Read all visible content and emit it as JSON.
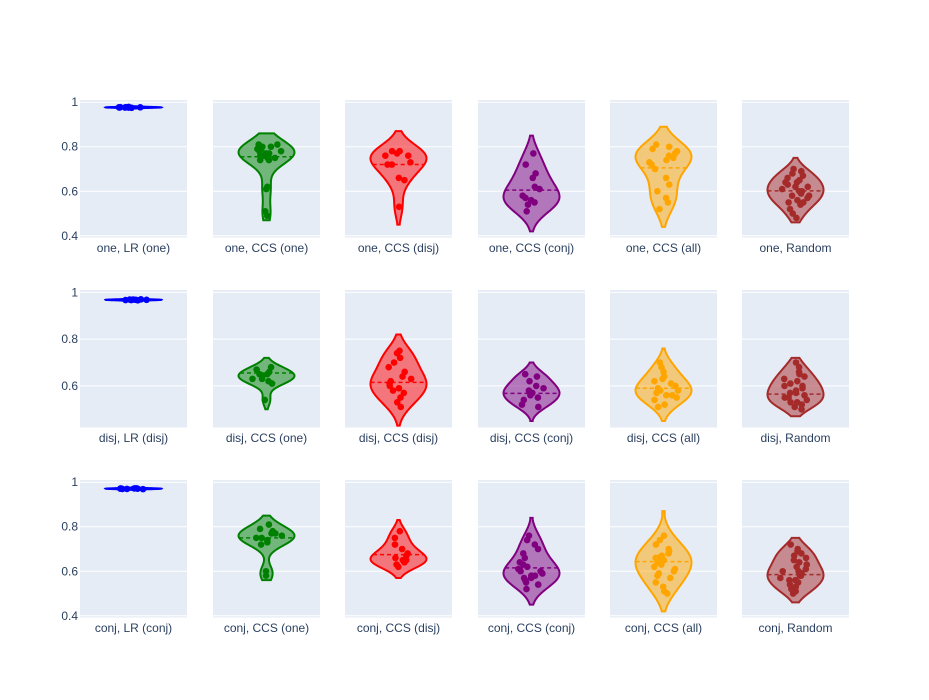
{
  "chart_data": {
    "type": "violin",
    "layout": "3x6 grid of violin subplots with overlaid jittered points and dashed mean line",
    "colors": {
      "plot_background": "#e5ecf6",
      "grid": "#ffffff",
      "text": "#2a3f5f",
      "LR": "#0000ff",
      "CCS (one)": "#008000",
      "CCS (disj)": "#ff0000",
      "CCS (conj)": "#800080",
      "CCS (all)": "#ffa500",
      "Random": "#a52a2a"
    },
    "rows": [
      {
        "yaxis": {
          "ticks": [
            0.4,
            0.6,
            0.8,
            1
          ],
          "range": [
            0.39,
            1.01
          ]
        },
        "panels": [
          {
            "label": "one, LR (one)",
            "series": "LR",
            "min": 0.972,
            "max": 0.982,
            "mean": 0.977,
            "values": [
              0.975,
              0.976,
              0.977,
              0.978,
              0.979,
              0.976,
              0.977,
              0.978,
              0.977,
              0.976
            ]
          },
          {
            "label": "one, CCS (one)",
            "series": "CCS (one)",
            "min": 0.47,
            "max": 0.86,
            "mean": 0.755,
            "values": [
              0.49,
              0.51,
              0.61,
              0.62,
              0.74,
              0.75,
              0.76,
              0.77,
              0.78,
              0.79,
              0.8,
              0.81,
              0.75,
              0.78,
              0.77,
              0.76,
              0.8,
              0.74,
              0.79,
              0.81
            ]
          },
          {
            "label": "one, CCS (disj)",
            "series": "CCS (disj)",
            "min": 0.45,
            "max": 0.87,
            "mean": 0.72,
            "values": [
              0.53,
              0.65,
              0.66,
              0.72,
              0.73,
              0.76,
              0.77,
              0.78,
              0.78,
              0.76,
              0.72
            ]
          },
          {
            "label": "one, CCS (conj)",
            "series": "CCS (conj)",
            "min": 0.42,
            "max": 0.85,
            "mean": 0.605,
            "values": [
              0.51,
              0.54,
              0.56,
              0.58,
              0.61,
              0.62,
              0.66,
              0.68,
              0.72,
              0.77,
              0.55,
              0.57
            ]
          },
          {
            "label": "one, CCS (all)",
            "series": "CCS (all)",
            "min": 0.44,
            "max": 0.89,
            "mean": 0.705,
            "values": [
              0.52,
              0.55,
              0.57,
              0.6,
              0.63,
              0.66,
              0.7,
              0.72,
              0.74,
              0.76,
              0.77,
              0.78,
              0.79,
              0.8,
              0.81,
              0.75,
              0.73
            ]
          },
          {
            "label": "one, Random",
            "series": "Random",
            "min": 0.46,
            "max": 0.75,
            "mean": 0.602,
            "values": [
              0.48,
              0.5,
              0.52,
              0.54,
              0.55,
              0.56,
              0.57,
              0.58,
              0.59,
              0.6,
              0.61,
              0.62,
              0.63,
              0.64,
              0.65,
              0.66,
              0.67,
              0.68,
              0.69,
              0.7,
              0.58,
              0.6,
              0.62,
              0.55,
              0.64
            ]
          }
        ]
      },
      {
        "yaxis": {
          "ticks": [
            0.6,
            0.8,
            1
          ],
          "range": [
            0.42,
            1.01
          ]
        },
        "panels": [
          {
            "label": "disj, LR (disj)",
            "series": "LR",
            "min": 0.962,
            "max": 0.975,
            "mean": 0.968,
            "values": [
              0.966,
              0.967,
              0.968,
              0.969,
              0.97,
              0.967,
              0.968,
              0.969
            ]
          },
          {
            "label": "disj, CCS (one)",
            "series": "CCS (one)",
            "min": 0.5,
            "max": 0.72,
            "mean": 0.655,
            "values": [
              0.54,
              0.61,
              0.62,
              0.63,
              0.64,
              0.65,
              0.66,
              0.67,
              0.68,
              0.65,
              0.63
            ]
          },
          {
            "label": "disj, CCS (disj)",
            "series": "CCS (disj)",
            "min": 0.43,
            "max": 0.82,
            "mean": 0.615,
            "values": [
              0.51,
              0.53,
              0.55,
              0.57,
              0.59,
              0.61,
              0.62,
              0.63,
              0.64,
              0.66,
              0.68,
              0.7,
              0.72,
              0.74,
              0.75,
              0.6,
              0.58
            ]
          },
          {
            "label": "disj, CCS (conj)",
            "series": "CCS (conj)",
            "min": 0.45,
            "max": 0.7,
            "mean": 0.568,
            "values": [
              0.51,
              0.52,
              0.54,
              0.55,
              0.56,
              0.57,
              0.58,
              0.59,
              0.6,
              0.62,
              0.64,
              0.65
            ]
          },
          {
            "label": "disj, CCS (all)",
            "series": "CCS (all)",
            "min": 0.45,
            "max": 0.76,
            "mean": 0.59,
            "values": [
              0.51,
              0.52,
              0.54,
              0.55,
              0.56,
              0.57,
              0.58,
              0.59,
              0.6,
              0.61,
              0.62,
              0.63,
              0.64,
              0.66,
              0.68,
              0.7,
              0.56,
              0.58
            ]
          },
          {
            "label": "disj, Random",
            "series": "Random",
            "min": 0.47,
            "max": 0.72,
            "mean": 0.565,
            "values": [
              0.5,
              0.51,
              0.52,
              0.53,
              0.54,
              0.55,
              0.56,
              0.57,
              0.58,
              0.59,
              0.6,
              0.61,
              0.62,
              0.63,
              0.64,
              0.65,
              0.66,
              0.68,
              0.7,
              0.55,
              0.57,
              0.53,
              0.6
            ]
          }
        ]
      },
      {
        "yaxis": {
          "ticks": [
            0.4,
            0.6,
            0.8,
            1
          ],
          "range": [
            0.39,
            1.01
          ]
        },
        "panels": [
          {
            "label": "conj, LR (conj)",
            "series": "LR",
            "min": 0.965,
            "max": 0.978,
            "mean": 0.971,
            "values": [
              0.969,
              0.97,
              0.971,
              0.972,
              0.973,
              0.97,
              0.971,
              0.972
            ]
          },
          {
            "label": "conj, CCS (one)",
            "series": "CCS (one)",
            "min": 0.56,
            "max": 0.85,
            "mean": 0.75,
            "values": [
              0.58,
              0.6,
              0.72,
              0.73,
              0.74,
              0.75,
              0.76,
              0.77,
              0.78,
              0.79,
              0.81,
              0.75,
              0.77
            ]
          },
          {
            "label": "conj, CCS (disj)",
            "series": "CCS (disj)",
            "min": 0.57,
            "max": 0.83,
            "mean": 0.675,
            "values": [
              0.62,
              0.63,
              0.64,
              0.65,
              0.66,
              0.67,
              0.68,
              0.7,
              0.72,
              0.75,
              0.78,
              0.65
            ]
          },
          {
            "label": "conj, CCS (conj)",
            "series": "CCS (conj)",
            "min": 0.45,
            "max": 0.84,
            "mean": 0.615,
            "values": [
              0.52,
              0.54,
              0.55,
              0.56,
              0.57,
              0.58,
              0.59,
              0.6,
              0.61,
              0.62,
              0.63,
              0.64,
              0.66,
              0.68,
              0.7,
              0.72,
              0.74,
              0.76,
              0.58,
              0.6,
              0.57
            ]
          },
          {
            "label": "conj, CCS (all)",
            "series": "CCS (all)",
            "min": 0.42,
            "max": 0.87,
            "mean": 0.643,
            "values": [
              0.5,
              0.51,
              0.53,
              0.55,
              0.57,
              0.59,
              0.6,
              0.61,
              0.62,
              0.63,
              0.64,
              0.65,
              0.66,
              0.67,
              0.68,
              0.69,
              0.7,
              0.72,
              0.74,
              0.76,
              0.58,
              0.66
            ]
          },
          {
            "label": "conj, Random",
            "series": "Random",
            "min": 0.46,
            "max": 0.75,
            "mean": 0.585,
            "values": [
              0.5,
              0.51,
              0.52,
              0.53,
              0.54,
              0.55,
              0.56,
              0.57,
              0.58,
              0.59,
              0.6,
              0.61,
              0.62,
              0.63,
              0.64,
              0.65,
              0.66,
              0.67,
              0.68,
              0.69,
              0.7,
              0.72,
              0.56,
              0.58,
              0.6
            ]
          }
        ]
      }
    ]
  }
}
